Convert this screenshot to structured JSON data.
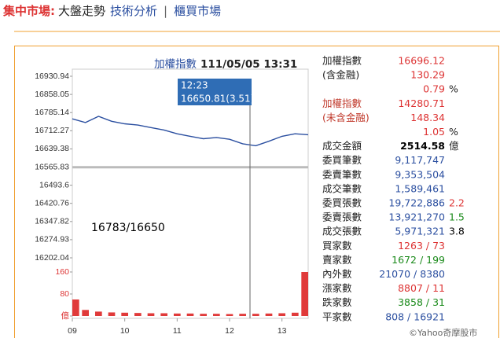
{
  "nav": {
    "label": "集中市場:",
    "items": [
      "大盤走勢",
      "技術分析",
      "櫃買市場"
    ],
    "separator": "|"
  },
  "chart_data": [
    {
      "type": "line",
      "title": "加權指數",
      "subtitle": "111/05/05 13:31",
      "x": [
        9,
        9.25,
        9.5,
        9.75,
        10,
        10.25,
        10.5,
        10.75,
        11,
        11.25,
        11.5,
        11.75,
        12,
        12.25,
        12.5,
        12.75,
        13,
        13.25,
        13.5
      ],
      "values": [
        16760,
        16745,
        16770,
        16750,
        16740,
        16735,
        16725,
        16715,
        16700,
        16690,
        16680,
        16685,
        16678,
        16660,
        16652,
        16670,
        16690,
        16700,
        16696.12
      ],
      "color": "#2b4fa0",
      "xlim": [
        9,
        13.5
      ],
      "xticks": [
        {
          "value": 9,
          "label": "09"
        },
        10,
        11,
        12,
        13
      ],
      "ylim": [
        16202.04,
        16930.94
      ],
      "yticks": [
        16930.94,
        16858.05,
        16785.14,
        16712.27,
        16639.38,
        16565.83,
        16493.6,
        16420.76,
        16347.82,
        16274.93,
        16202.04
      ],
      "reference_tick": 5,
      "annotation": "16783/16650",
      "tooltip": {
        "time": "12:23",
        "text": "16650.81(3.51)"
      }
    },
    {
      "type": "bar",
      "x": [
        9,
        9.25,
        9.5,
        9.75,
        10,
        10.25,
        10.5,
        10.75,
        11,
        11.25,
        11.5,
        11.75,
        12,
        12.25,
        12.5,
        12.75,
        13,
        13.25,
        13.5
      ],
      "values": [
        60,
        22,
        16,
        13,
        12,
        11,
        10,
        10,
        9,
        9,
        8,
        8,
        7,
        8,
        8,
        9,
        10,
        12,
        160
      ],
      "color": "#e03a3a",
      "xlim": [
        9,
        13.5
      ],
      "ylim": [
        0,
        160
      ],
      "yticks": [
        {
          "value": 0,
          "label": "億"
        },
        80,
        160
      ]
    }
  ],
  "quote": {
    "rows": [
      {
        "label": "加權指數",
        "value": "16696.12",
        "color": "#d33"
      },
      {
        "label": "(含金融)",
        "value": "130.29",
        "color": "#d33"
      },
      {
        "value": "0.79",
        "extra": "%",
        "color": "#d33"
      },
      {
        "label": "加權指數",
        "value": "14280.71",
        "color": "#d33",
        "label_color": "#c0392b"
      },
      {
        "label": "(未含金融)",
        "value": "148.34",
        "color": "#d33",
        "label_color": "#c0392b"
      },
      {
        "value": "1.05",
        "extra": "%",
        "color": "#d33"
      },
      {
        "label": "成交金額",
        "value": "2514.58",
        "extra": "億",
        "color": "#000",
        "bold": true
      },
      {
        "label": "委買筆數",
        "value": "9,117,747",
        "color": "#2b4fa0"
      },
      {
        "label": "委賣筆數",
        "value": "9,353,504",
        "color": "#2b4fa0"
      },
      {
        "label": "成交筆數",
        "value": "1,589,461",
        "color": "#2b4fa0"
      },
      {
        "label": "委買張數",
        "value": "19,722,886",
        "extra": "2.2",
        "color": "#2b4fa0",
        "extra_color": "#d33"
      },
      {
        "label": "委賣張數",
        "value": "13,921,270",
        "extra": "1.5",
        "color": "#2b4fa0",
        "extra_color": "#1a8a1a"
      },
      {
        "label": "成交張數",
        "value": "5,971,321",
        "extra": "3.8",
        "color": "#2b4fa0",
        "extra_color": "#000"
      },
      {
        "label": "買家數",
        "value": "1263 / 73",
        "color": "#d33"
      },
      {
        "label": "賣家數",
        "value": "1672 / 199",
        "color": "#1a8a1a"
      },
      {
        "label": "內外數",
        "value": "21070 / 8380",
        "color": "#2b4fa0"
      },
      {
        "label": "漲家數",
        "value": "8807 / 11",
        "color": "#d33"
      },
      {
        "label": "跌家數",
        "value": "3858 / 31",
        "color": "#1a8a1a"
      },
      {
        "label": "平家數",
        "value": "808 / 16921",
        "color": "#2b4fa0"
      }
    ]
  },
  "footer": "©Yahoo奇摩股市"
}
